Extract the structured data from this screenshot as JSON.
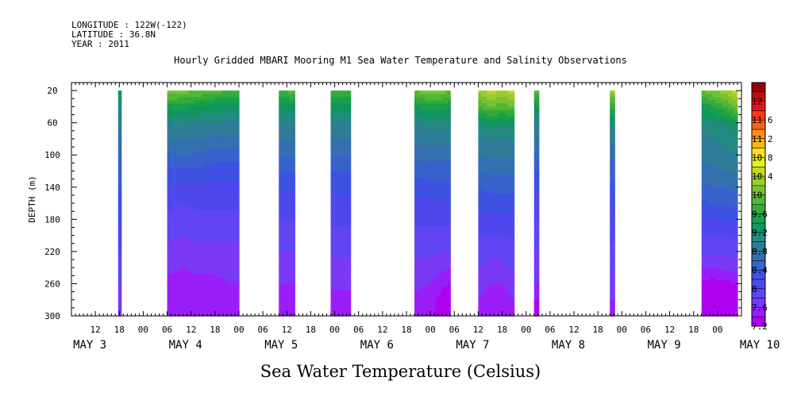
{
  "header": {
    "longitude": "LONGITUDE : 122W(-122)",
    "latitude": "LATITUDE : 36.8N",
    "year": "YEAR : 2011"
  },
  "chart_data": {
    "type": "heatmap",
    "title": "Hourly Gridded MBARI Mooring M1 Sea Water Temperature and Salinity Observations",
    "xlabel": "",
    "ylabel": "DEPTH (m)",
    "colorbar_label": "Sea Water Temperature (Celsius)",
    "x_unit": "hours since MAY 3 00:00",
    "xlim": [
      6,
      174
    ],
    "ylim": [
      300,
      10
    ],
    "y_ticks": [
      20,
      60,
      100,
      140,
      180,
      220,
      260,
      300
    ],
    "x_hour_ticks": [
      {
        "x": 12,
        "label": "12"
      },
      {
        "x": 18,
        "label": "18"
      },
      {
        "x": 24,
        "label": "00"
      },
      {
        "x": 30,
        "label": "06"
      },
      {
        "x": 36,
        "label": "12"
      },
      {
        "x": 42,
        "label": "18"
      },
      {
        "x": 48,
        "label": "00"
      },
      {
        "x": 54,
        "label": "06"
      },
      {
        "x": 60,
        "label": "12"
      },
      {
        "x": 66,
        "label": "18"
      },
      {
        "x": 72,
        "label": "00"
      },
      {
        "x": 78,
        "label": "06"
      },
      {
        "x": 84,
        "label": "12"
      },
      {
        "x": 90,
        "label": "18"
      },
      {
        "x": 96,
        "label": "00"
      },
      {
        "x": 102,
        "label": "06"
      },
      {
        "x": 108,
        "label": "12"
      },
      {
        "x": 114,
        "label": "18"
      },
      {
        "x": 120,
        "label": "00"
      },
      {
        "x": 126,
        "label": "06"
      },
      {
        "x": 132,
        "label": "12"
      },
      {
        "x": 138,
        "label": "18"
      },
      {
        "x": 144,
        "label": "00"
      },
      {
        "x": 150,
        "label": "06"
      },
      {
        "x": 156,
        "label": "12"
      },
      {
        "x": 162,
        "label": "18"
      },
      {
        "x": 168,
        "label": "00"
      }
    ],
    "x_day_labels": [
      {
        "x": 12,
        "label": "MAY  3"
      },
      {
        "x": 36,
        "label": "MAY  4"
      },
      {
        "x": 60,
        "label": "MAY  5"
      },
      {
        "x": 84,
        "label": "MAY  6"
      },
      {
        "x": 108,
        "label": "MAY  7"
      },
      {
        "x": 132,
        "label": "MAY  8"
      },
      {
        "x": 156,
        "label": "MAY  9"
      },
      {
        "x": 180,
        "label": "MAY 10"
      }
    ],
    "levels": [
      7.2,
      7.4,
      7.6,
      7.8,
      8.0,
      8.2,
      8.4,
      8.6,
      8.8,
      9.0,
      9.2,
      9.4,
      9.6,
      9.8,
      10.0,
      10.2,
      10.4,
      10.6,
      10.8,
      11.0,
      11.2,
      11.4,
      11.6,
      11.8,
      12.0,
      12.2
    ],
    "level_labels": [
      "7.2",
      "7.6",
      "8",
      "8.4",
      "8.8",
      "9.2",
      "9.6",
      "10",
      "10.4",
      "10.8",
      "11.2",
      "11.6",
      "12"
    ],
    "colors": [
      "#b000f0",
      "#9a1ef8",
      "#7a3af5",
      "#6046f2",
      "#4e48ec",
      "#3f52e2",
      "#3863cc",
      "#3470b0",
      "#2e7d98",
      "#238a80",
      "#12955e",
      "#18a04a",
      "#35aa3c",
      "#55b636",
      "#76c233",
      "#99cd2e",
      "#c0d928",
      "#e8ee22",
      "#f8e21c",
      "#fcb818",
      "#fb8e18",
      "#f96318",
      "#f53a18",
      "#e81616",
      "#c40c0c",
      "#940404"
    ],
    "depths": [
      20,
      40,
      60,
      80,
      100,
      120,
      140,
      160,
      180,
      200,
      220,
      240,
      260,
      280,
      300
    ],
    "segments": [
      {
        "x0": 17.7,
        "x1": 18.5,
        "columns": [
          {
            "x": 17.7,
            "temps": [
              9.4,
              9.1,
              8.9,
              8.75,
              8.6,
              8.5,
              8.4,
              8.3,
              8.2,
              8.1,
              8.0,
              7.9,
              7.8,
              7.7,
              7.6
            ]
          },
          {
            "x": 18.5,
            "temps": [
              9.4,
              9.1,
              8.9,
              8.75,
              8.6,
              8.5,
              8.4,
              8.3,
              8.2,
              8.1,
              8.0,
              7.9,
              7.8,
              7.7,
              7.6
            ]
          }
        ]
      },
      {
        "x0": 30,
        "x1": 48,
        "columns": [
          {
            "x": 30,
            "temps": [
              10.2,
              9.5,
              9.0,
              8.8,
              8.55,
              8.35,
              8.2,
              8.05,
              7.95,
              7.85,
              7.75,
              7.65,
              7.55,
              7.45,
              7.4
            ]
          },
          {
            "x": 34,
            "temps": [
              10.1,
              9.45,
              9.05,
              8.8,
              8.6,
              8.35,
              8.15,
              8.0,
              7.9,
              7.8,
              7.7,
              7.6,
              7.5,
              7.45,
              7.4
            ]
          },
          {
            "x": 38,
            "temps": [
              10.0,
              9.4,
              9.0,
              8.8,
              8.55,
              8.35,
              8.15,
              8.05,
              7.95,
              7.85,
              7.75,
              7.65,
              7.55,
              7.5,
              7.45
            ]
          },
          {
            "x": 42,
            "temps": [
              9.9,
              9.3,
              9.0,
              8.75,
              8.5,
              8.3,
              8.15,
              8.05,
              7.95,
              7.85,
              7.75,
              7.65,
              7.55,
              7.45,
              7.4
            ]
          },
          {
            "x": 46,
            "temps": [
              9.8,
              9.3,
              8.95,
              8.75,
              8.5,
              8.3,
              8.15,
              8.05,
              7.95,
              7.85,
              7.75,
              7.65,
              7.6,
              7.5,
              7.45
            ]
          },
          {
            "x": 48,
            "temps": [
              9.8,
              9.3,
              8.95,
              8.75,
              8.5,
              8.3,
              8.15,
              8.05,
              7.95,
              7.85,
              7.75,
              7.7,
              7.6,
              7.5,
              7.45
            ]
          }
        ]
      },
      {
        "x0": 58,
        "x1": 62,
        "columns": [
          {
            "x": 58,
            "temps": [
              9.8,
              9.3,
              9.0,
              8.8,
              8.6,
              8.4,
              8.25,
              8.1,
              8.0,
              7.9,
              7.8,
              7.7,
              7.6,
              7.55,
              7.5
            ]
          },
          {
            "x": 62,
            "temps": [
              9.9,
              9.35,
              9.0,
              8.8,
              8.6,
              8.4,
              8.25,
              8.1,
              8.0,
              7.9,
              7.8,
              7.7,
              7.6,
              7.55,
              7.5
            ]
          }
        ]
      },
      {
        "x0": 71,
        "x1": 76,
        "columns": [
          {
            "x": 71,
            "temps": [
              9.8,
              9.3,
              9.0,
              8.8,
              8.6,
              8.4,
              8.25,
              8.15,
              8.05,
              7.95,
              7.85,
              7.75,
              7.65,
              7.55,
              7.5
            ]
          },
          {
            "x": 76,
            "temps": [
              9.8,
              9.3,
              9.0,
              8.8,
              8.6,
              8.4,
              8.25,
              8.15,
              8.05,
              7.95,
              7.85,
              7.75,
              7.65,
              7.55,
              7.5
            ]
          }
        ]
      },
      {
        "x0": 92,
        "x1": 101,
        "columns": [
          {
            "x": 92,
            "temps": [
              10.0,
              9.4,
              9.0,
              8.85,
              8.65,
              8.45,
              8.3,
              8.15,
              8.05,
              7.95,
              7.85,
              7.75,
              7.65,
              7.55,
              7.5
            ]
          },
          {
            "x": 96,
            "temps": [
              10.2,
              9.5,
              9.1,
              8.9,
              8.7,
              8.5,
              8.3,
              8.15,
              8.05,
              7.95,
              7.85,
              7.75,
              7.6,
              7.5,
              7.45
            ]
          },
          {
            "x": 99,
            "temps": [
              10.1,
              9.5,
              9.1,
              8.9,
              8.7,
              8.5,
              8.35,
              8.2,
              8.05,
              7.95,
              7.8,
              7.65,
              7.45,
              7.3,
              7.25
            ]
          },
          {
            "x": 101,
            "temps": [
              10.0,
              9.4,
              9.1,
              8.9,
              8.7,
              8.5,
              8.35,
              8.2,
              8.05,
              7.95,
              7.8,
              7.6,
              7.4,
              7.3,
              7.25
            ]
          }
        ]
      },
      {
        "x0": 108,
        "x1": 117,
        "columns": [
          {
            "x": 108,
            "temps": [
              10.3,
              9.8,
              9.2,
              8.95,
              8.8,
              8.6,
              8.4,
              8.25,
              8.1,
              8.0,
              7.9,
              7.8,
              7.7,
              7.6,
              7.55
            ]
          },
          {
            "x": 111,
            "temps": [
              10.5,
              10.0,
              9.3,
              9.0,
              8.85,
              8.65,
              8.45,
              8.3,
              8.15,
              8.0,
              7.85,
              7.75,
              7.6,
              7.5,
              7.45
            ]
          },
          {
            "x": 114,
            "temps": [
              10.4,
              9.9,
              9.25,
              9.0,
              8.85,
              8.65,
              8.45,
              8.3,
              8.15,
              8.0,
              7.85,
              7.75,
              7.6,
              7.5,
              7.45
            ]
          },
          {
            "x": 117,
            "temps": [
              10.5,
              10.0,
              9.3,
              9.0,
              8.85,
              8.65,
              8.45,
              8.3,
              8.15,
              8.05,
              7.95,
              7.85,
              7.7,
              7.6,
              7.55
            ]
          }
        ]
      },
      {
        "x0": 122,
        "x1": 123.2,
        "columns": [
          {
            "x": 122,
            "temps": [
              9.9,
              9.35,
              9.0,
              8.8,
              8.6,
              8.4,
              8.25,
              8.1,
              8.0,
              7.9,
              7.8,
              7.7,
              7.6,
              7.4,
              7.3
            ]
          },
          {
            "x": 123.2,
            "temps": [
              9.9,
              9.35,
              9.0,
              8.8,
              8.6,
              8.4,
              8.25,
              8.1,
              8.0,
              7.9,
              7.8,
              7.7,
              7.6,
              7.4,
              7.3
            ]
          }
        ]
      },
      {
        "x0": 141,
        "x1": 142.2,
        "columns": [
          {
            "x": 141,
            "temps": [
              10.3,
              9.7,
              9.2,
              8.9,
              8.7,
              8.5,
              8.35,
              8.25,
              8.15,
              8.05,
              7.95,
              7.85,
              7.7,
              7.6,
              7.5
            ]
          },
          {
            "x": 142.2,
            "temps": [
              10.3,
              9.7,
              9.2,
              8.9,
              8.7,
              8.5,
              8.35,
              8.25,
              8.15,
              8.05,
              7.95,
              7.85,
              7.7,
              7.6,
              7.5
            ]
          }
        ]
      },
      {
        "x0": 164,
        "x1": 173,
        "columns": [
          {
            "x": 164,
            "temps": [
              10.0,
              9.4,
              9.05,
              8.95,
              8.85,
              8.7,
              8.55,
              8.35,
              8.15,
              8.0,
              7.85,
              7.6,
              7.35,
              7.25,
              7.2
            ]
          },
          {
            "x": 167,
            "temps": [
              10.2,
              9.6,
              9.15,
              9.0,
              8.9,
              8.75,
              8.6,
              8.4,
              8.2,
              8.0,
              7.85,
              7.6,
              7.3,
              7.25,
              7.2
            ]
          },
          {
            "x": 170,
            "temps": [
              10.3,
              9.8,
              9.2,
              9.05,
              8.95,
              8.8,
              8.6,
              8.4,
              8.2,
              8.0,
              7.85,
              7.65,
              7.35,
              7.25,
              7.2
            ]
          },
          {
            "x": 173,
            "temps": [
              10.6,
              10.1,
              9.4,
              9.1,
              9.0,
              8.85,
              8.65,
              8.45,
              8.25,
              8.05,
              7.9,
              7.7,
              7.4,
              7.3,
              7.25
            ]
          }
        ]
      }
    ],
    "grid": false
  }
}
